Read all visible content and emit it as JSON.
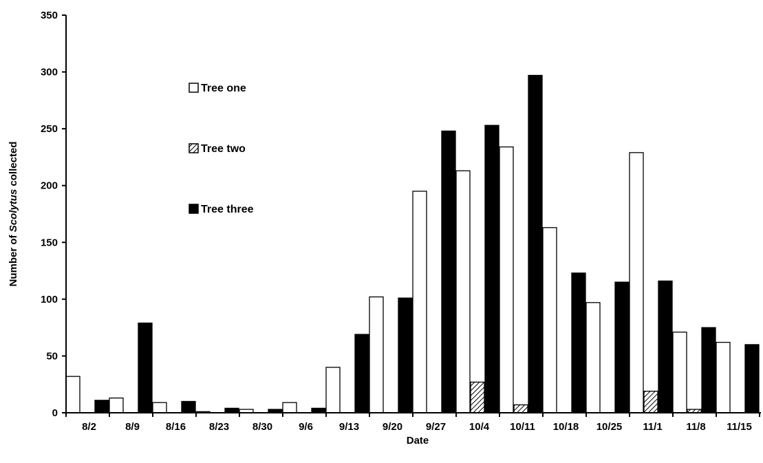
{
  "chart_data": {
    "type": "bar",
    "title": "",
    "xlabel": "Date",
    "ylabel": {
      "before": "Number of ",
      "italic": "Scolytus",
      "after": "  collected"
    },
    "ylim": [
      0,
      350
    ],
    "yticks": [
      0,
      50,
      100,
      150,
      200,
      250,
      300,
      350
    ],
    "grid": false,
    "legend_position": "upper-left inside plot",
    "categories": [
      "8/2",
      "8/9",
      "8/16",
      "8/23",
      "8/30",
      "9/6",
      "9/13",
      "9/20",
      "9/27",
      "10/4",
      "10/11",
      "10/18",
      "10/25",
      "11/1",
      "11/8",
      "11/15"
    ],
    "series": [
      {
        "name": "Tree one",
        "fill": "white",
        "hatch": false,
        "values": [
          32,
          13,
          9,
          1,
          3,
          9,
          40,
          102,
          195,
          213,
          234,
          163,
          97,
          229,
          71,
          62
        ]
      },
      {
        "name": "Tree two",
        "fill": "hatched",
        "hatch": true,
        "values": [
          0,
          0,
          0,
          0,
          0,
          0,
          0,
          0,
          0,
          27,
          7,
          0,
          0,
          19,
          3,
          0
        ]
      },
      {
        "name": "Tree three",
        "fill": "black",
        "hatch": false,
        "values": [
          11,
          79,
          10,
          4,
          3,
          4,
          69,
          101,
          248,
          253,
          297,
          123,
          115,
          116,
          75,
          60
        ]
      }
    ]
  }
}
